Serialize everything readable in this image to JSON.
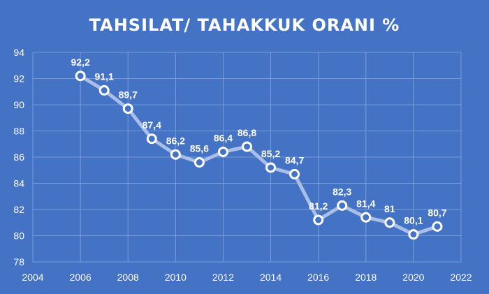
{
  "chart_data": {
    "type": "line",
    "title": "TAHSILAT/ TAHAKKUK  ORANI %",
    "xlabel": "",
    "ylabel": "",
    "xlim": [
      2004,
      2022
    ],
    "ylim": [
      78,
      94
    ],
    "x_ticks": [
      2004,
      2006,
      2008,
      2010,
      2012,
      2014,
      2016,
      2018,
      2020,
      2022
    ],
    "y_ticks": [
      78,
      80,
      82,
      84,
      86,
      88,
      90,
      92,
      94
    ],
    "grid": true,
    "legend": "none",
    "colors": {
      "background": "#4472c4",
      "line": "#a9bfe8",
      "marker_fill": "#4472c4",
      "marker_stroke": "#ffffff",
      "grid": "#7a9cd8",
      "text": "#ffffff"
    },
    "series": [
      {
        "x": [
          2006,
          2007,
          2008,
          2009,
          2010,
          2011,
          2012,
          2013,
          2014,
          2015,
          2016,
          2017,
          2018,
          2019,
          2020,
          2021
        ],
        "values": [
          92.2,
          91.1,
          89.7,
          87.4,
          86.2,
          85.6,
          86.4,
          86.8,
          85.2,
          84.7,
          81.2,
          82.3,
          81.4,
          81,
          80.1,
          80.7
        ],
        "labels": [
          "92,2",
          "91,1",
          "89,7",
          "87,4",
          "86,2",
          "85,6",
          "86,4",
          "86,8",
          "85,2",
          "84,7",
          "81,2",
          "82,3",
          "81,4",
          "81",
          "80,1",
          "80,7"
        ]
      }
    ]
  }
}
